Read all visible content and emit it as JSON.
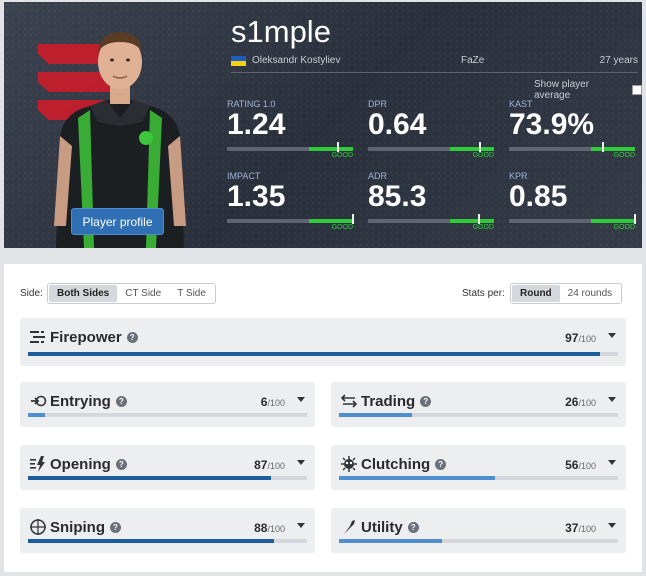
{
  "player": {
    "nickname": "s1mple",
    "full_name": "Oleksandr Kostyliev",
    "team": "FaZe",
    "age": "27 years",
    "profile_button": "Player profile",
    "show_average_label": "Show player average"
  },
  "header_stats": [
    {
      "label": "RATING 1.0",
      "value": "1.24",
      "badge": "GOOD",
      "level": 0.87
    },
    {
      "label": "DPR",
      "value": "0.64",
      "badge": "GOOD",
      "level": 0.88
    },
    {
      "label": "KAST",
      "value": "73.9%",
      "badge": "GOOD",
      "level": 0.74
    },
    {
      "label": "IMPACT",
      "value": "1.35",
      "badge": "GOOD",
      "level": 0.99
    },
    {
      "label": "ADR",
      "value": "85.3",
      "badge": "GOOD",
      "level": 0.87
    },
    {
      "label": "KPR",
      "value": "0.85",
      "badge": "GOOD",
      "level": 0.99
    }
  ],
  "filters": {
    "side_label": "Side:",
    "side_options": [
      "Both Sides",
      "CT Side",
      "T Side"
    ],
    "stats_per_label": "Stats per:",
    "stats_per_options": [
      "Round",
      "24 rounds"
    ]
  },
  "score_max": "/100",
  "categories": [
    {
      "name": "Firepower",
      "icon": "firepower-icon",
      "score": "97",
      "value": 97
    },
    {
      "name": "Entrying",
      "icon": "entrying-icon",
      "score": "6",
      "value": 6
    },
    {
      "name": "Trading",
      "icon": "trading-icon",
      "score": "26",
      "value": 26
    },
    {
      "name": "Opening",
      "icon": "opening-icon",
      "score": "87",
      "value": 87
    },
    {
      "name": "Clutching",
      "icon": "clutching-icon",
      "score": "56",
      "value": 56
    },
    {
      "name": "Sniping",
      "icon": "sniping-icon",
      "score": "88",
      "value": 88
    },
    {
      "name": "Utility",
      "icon": "utility-icon",
      "score": "37",
      "value": 37
    }
  ],
  "colors": {
    "good": "#2fcc3a",
    "bar_dark": "#1d5d9e",
    "bar_light": "#4f8fd0",
    "button": "#2f6fb3"
  }
}
